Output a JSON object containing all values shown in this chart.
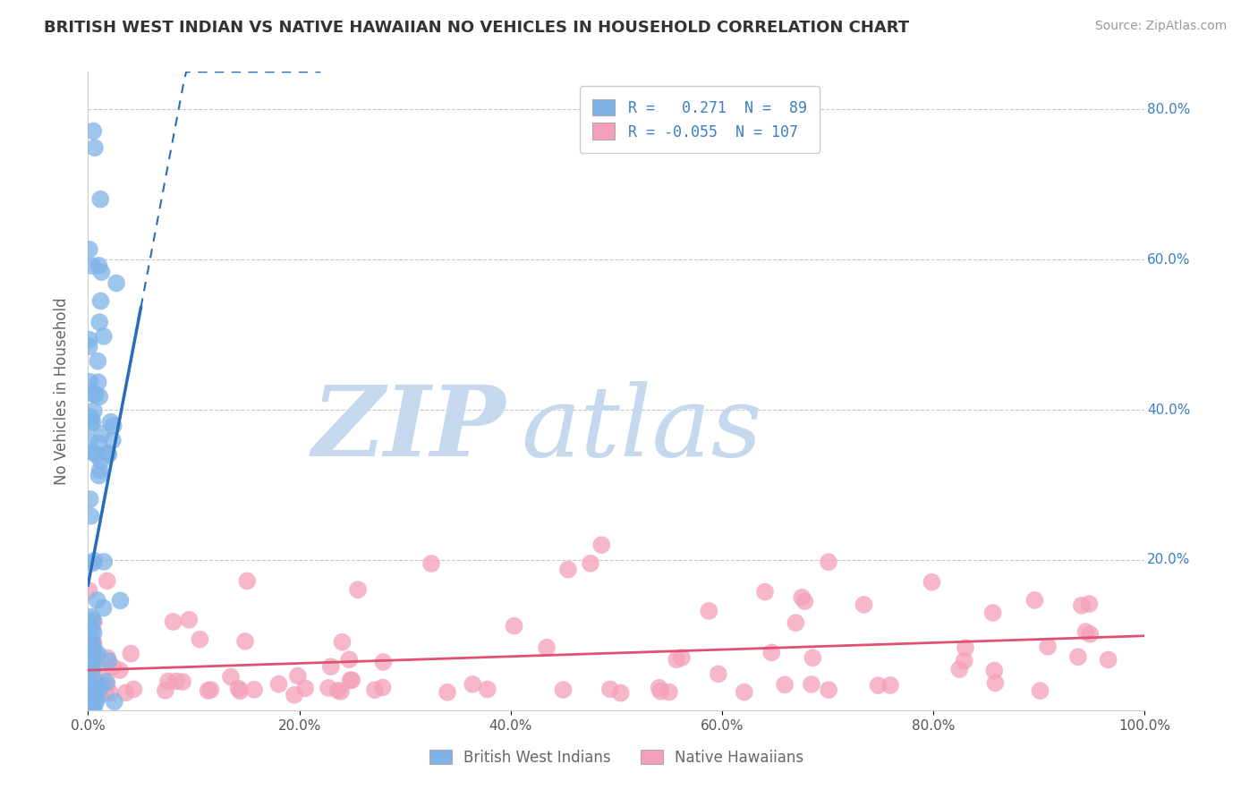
{
  "title": "BRITISH WEST INDIAN VS NATIVE HAWAIIAN NO VEHICLES IN HOUSEHOLD CORRELATION CHART",
  "source": "Source: ZipAtlas.com",
  "ylabel": "No Vehicles in Household",
  "xlim": [
    0,
    1.0
  ],
  "ylim": [
    0,
    0.85
  ],
  "xtick_labels": [
    "0.0%",
    "20.0%",
    "40.0%",
    "60.0%",
    "80.0%",
    "100.0%"
  ],
  "xtick_values": [
    0.0,
    0.2,
    0.4,
    0.6,
    0.8,
    1.0
  ],
  "ytick_labels": [
    "20.0%",
    "40.0%",
    "60.0%",
    "80.0%"
  ],
  "ytick_values": [
    0.2,
    0.4,
    0.6,
    0.8
  ],
  "blue_R": 0.271,
  "blue_N": 89,
  "pink_R": -0.055,
  "pink_N": 107,
  "blue_color": "#7EB3E8",
  "pink_color": "#F4A0B8",
  "blue_line_color": "#2B6CB8",
  "pink_line_color": "#E05070",
  "watermark_zip_color": "#C5D8EE",
  "watermark_atlas_color": "#C5D8EE",
  "background_color": "#FFFFFF",
  "grid_color": "#BBBBBB",
  "title_color": "#333333",
  "legend_text_color": "#3A7DC9",
  "legend_blue_label": "R =   0.271  N =  89",
  "legend_pink_label": "R = -0.055  N = 107",
  "bottom_legend_blue": "British West Indians",
  "bottom_legend_pink": "Native Hawaiians"
}
